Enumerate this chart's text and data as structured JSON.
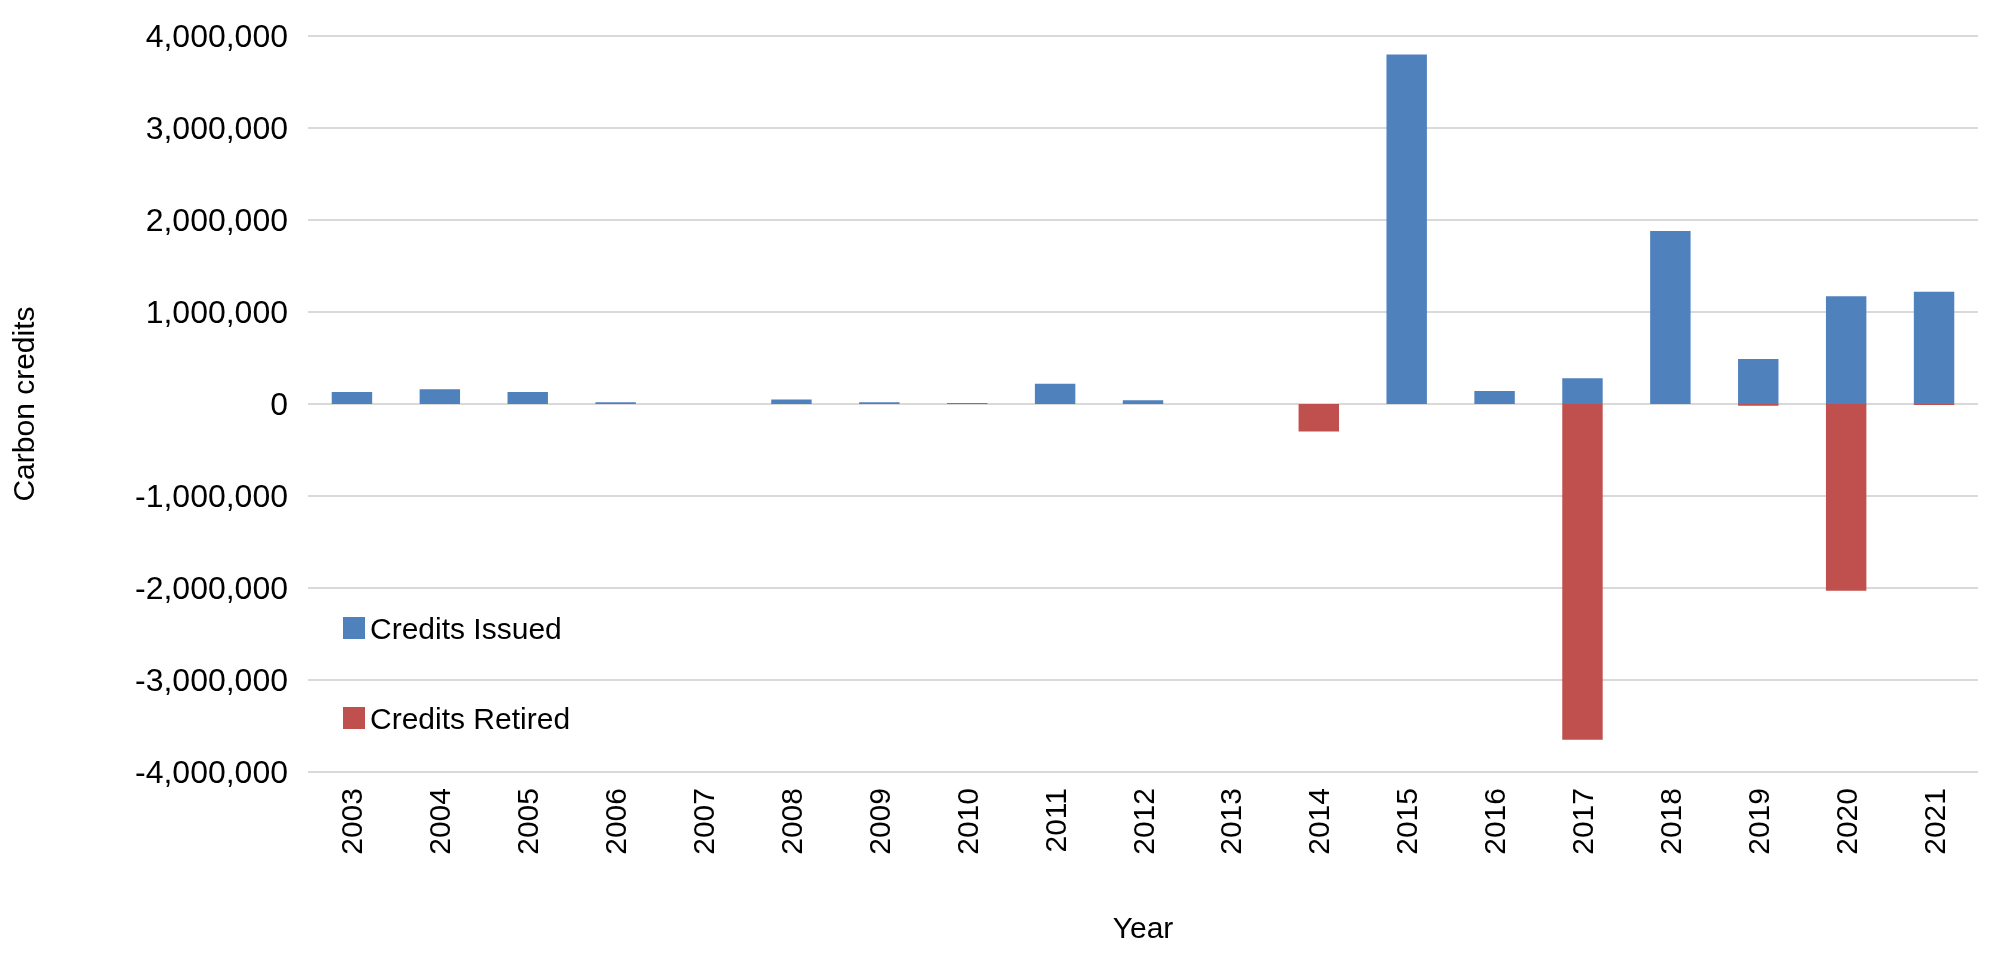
{
  "chart_data": {
    "type": "bar",
    "xlabel": "Year",
    "ylabel": "Carbon credits",
    "categories": [
      "2003",
      "2004",
      "2005",
      "2006",
      "2007",
      "2008",
      "2009",
      "2010",
      "2011",
      "2012",
      "2013",
      "2014",
      "2015",
      "2016",
      "2017",
      "2018",
      "2019",
      "2020",
      "2021"
    ],
    "series": [
      {
        "name": "Credits Issued",
        "color": "#4f81bd",
        "values": [
          130000,
          160000,
          130000,
          20000,
          0,
          50000,
          20000,
          10000,
          220000,
          40000,
          0,
          0,
          3800000,
          140000,
          280000,
          1880000,
          490000,
          1170000,
          1220000
        ]
      },
      {
        "name": "Credits Retired",
        "color": "#c0504d",
        "values": [
          0,
          0,
          0,
          0,
          0,
          0,
          0,
          0,
          0,
          0,
          0,
          -300000,
          0,
          0,
          -3650000,
          0,
          -20000,
          -2030000,
          -10000
        ]
      }
    ],
    "ylim": [
      -4000000,
      4000000
    ],
    "yticks": [
      {
        "value": -4000000,
        "label": "-4,000,000"
      },
      {
        "value": -3000000,
        "label": "-3,000,000"
      },
      {
        "value": -2000000,
        "label": "-2,000,000"
      },
      {
        "value": -1000000,
        "label": "-1,000,000"
      },
      0,
      {
        "value": 1000000,
        "label": "1,000,000"
      },
      {
        "value": 2000000,
        "label": "2,000,000"
      },
      {
        "value": 3000000,
        "label": "3,000,000"
      },
      {
        "value": 4000000,
        "label": "4,000,000"
      }
    ],
    "grid": "y",
    "legend": "left"
  }
}
